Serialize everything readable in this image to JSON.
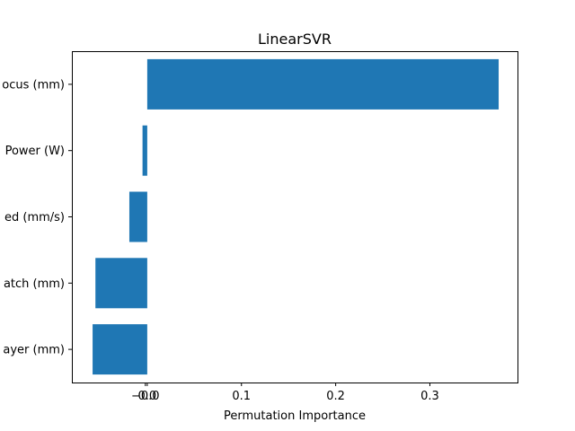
{
  "chart_data": {
    "type": "bar",
    "orientation": "horizontal",
    "title": "LinearSVR",
    "xlabel": "Permutation Importance",
    "ylabel": "",
    "categories": [
      "ocus (mm)",
      "Power (W)",
      "ed (mm/s)",
      "atch (mm)",
      "ayer (mm)"
    ],
    "values": [
      0.373,
      -0.005,
      -0.019,
      -0.055,
      -0.058
    ],
    "xlim": [
      -0.08,
      0.393
    ],
    "xticks": [
      0.0,
      0.1,
      0.2,
      0.3
    ],
    "xtick_labels": [
      "0.0",
      "0.1",
      "0.2",
      "0.3"
    ],
    "extra_tick_labels": [
      "−0.0"
    ],
    "extra_tick_values": [
      -0.002
    ],
    "grid": false,
    "bar_color": "#1f77b4"
  }
}
